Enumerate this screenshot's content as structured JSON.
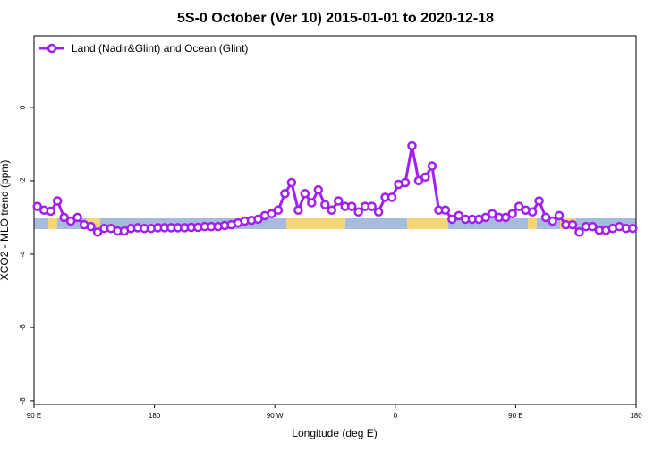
{
  "chart_data": {
    "type": "line",
    "title": "5S-0 October (Ver 10)   2015-01-01 to 2020-12-18",
    "x_label": "Longitude (deg E)",
    "y_label": "XCO2 - MLO trend (ppm)",
    "legend_position": "top-left",
    "xlim": [
      90,
      540
    ],
    "xticks": [
      {
        "value": 90,
        "label": "90 E"
      },
      180,
      {
        "value": 270,
        "label": "90 W"
      },
      {
        "value": 360,
        "label": "0"
      },
      {
        "value": 450,
        "label": "90 E"
      },
      {
        "value": 540,
        "label": "180"
      }
    ],
    "ylim": [
      -8.1,
      1.95
    ],
    "yticks": [
      0,
      -2,
      -4,
      -6,
      -8
    ],
    "x": [
      92.5,
      97.5,
      102.5,
      107.5,
      112.5,
      117.5,
      122.5,
      127.5,
      132.5,
      137.5,
      142.5,
      147.5,
      152.5,
      157.5,
      162.5,
      167.5,
      172.5,
      177.5,
      182.5,
      187.5,
      192.5,
      197.5,
      202.5,
      207.5,
      212.5,
      217.5,
      222.5,
      227.5,
      232.5,
      237.5,
      242.5,
      247.5,
      252.5,
      257.5,
      262.5,
      267.5,
      272.5,
      277.5,
      282.5,
      287.5,
      292.5,
      297.5,
      302.5,
      307.5,
      312.5,
      317.5,
      322.5,
      327.5,
      332.5,
      337.5,
      342.5,
      347.5,
      352.5,
      357.5,
      362.5,
      367.5,
      372.5,
      377.5,
      382.5,
      387.5,
      392.5,
      397.5,
      402.5,
      407.5,
      412.5,
      417.5,
      422.5,
      427.5,
      432.5,
      437.5,
      442.5,
      447.5,
      452.5,
      457.5,
      462.5,
      467.5,
      472.5,
      477.5,
      482.5,
      487.5,
      492.5,
      497.5,
      502.5,
      507.5,
      512.5,
      517.5,
      522.5,
      527.5,
      532.5,
      537.5
    ],
    "series": [
      {
        "name": "Land (Nadir&Glint) and Ocean (Glint)",
        "color": "#a020f0",
        "values": [
          -2.7,
          -2.8,
          -2.83,
          -2.55,
          -3.0,
          -3.1,
          -3.0,
          -3.2,
          -3.25,
          -3.4,
          -3.3,
          -3.3,
          -3.37,
          -3.37,
          -3.3,
          -3.28,
          -3.3,
          -3.3,
          -3.28,
          -3.28,
          -3.28,
          -3.28,
          -3.28,
          -3.27,
          -3.27,
          -3.25,
          -3.25,
          -3.25,
          -3.22,
          -3.2,
          -3.15,
          -3.1,
          -3.08,
          -3.05,
          -2.95,
          -2.9,
          -2.8,
          -2.35,
          -2.05,
          -2.8,
          -2.35,
          -2.6,
          -2.25,
          -2.65,
          -2.8,
          -2.55,
          -2.7,
          -2.7,
          -2.85,
          -2.7,
          -2.7,
          -2.85,
          -2.45,
          -2.45,
          -2.1,
          -2.05,
          -1.05,
          -2.0,
          -1.9,
          -1.6,
          -2.8,
          -2.8,
          -3.05,
          -2.95,
          -3.05,
          -3.05,
          -3.05,
          -3.0,
          -2.9,
          -3.0,
          -3.0,
          -2.9,
          -2.7,
          -2.8,
          -2.85,
          -2.55,
          -3.0,
          -3.1,
          -2.95,
          -3.2,
          -3.2,
          -3.4,
          -3.25,
          -3.25,
          -3.35,
          -3.35,
          -3.3,
          -3.25,
          -3.3,
          -3.3
        ]
      }
    ]
  }
}
